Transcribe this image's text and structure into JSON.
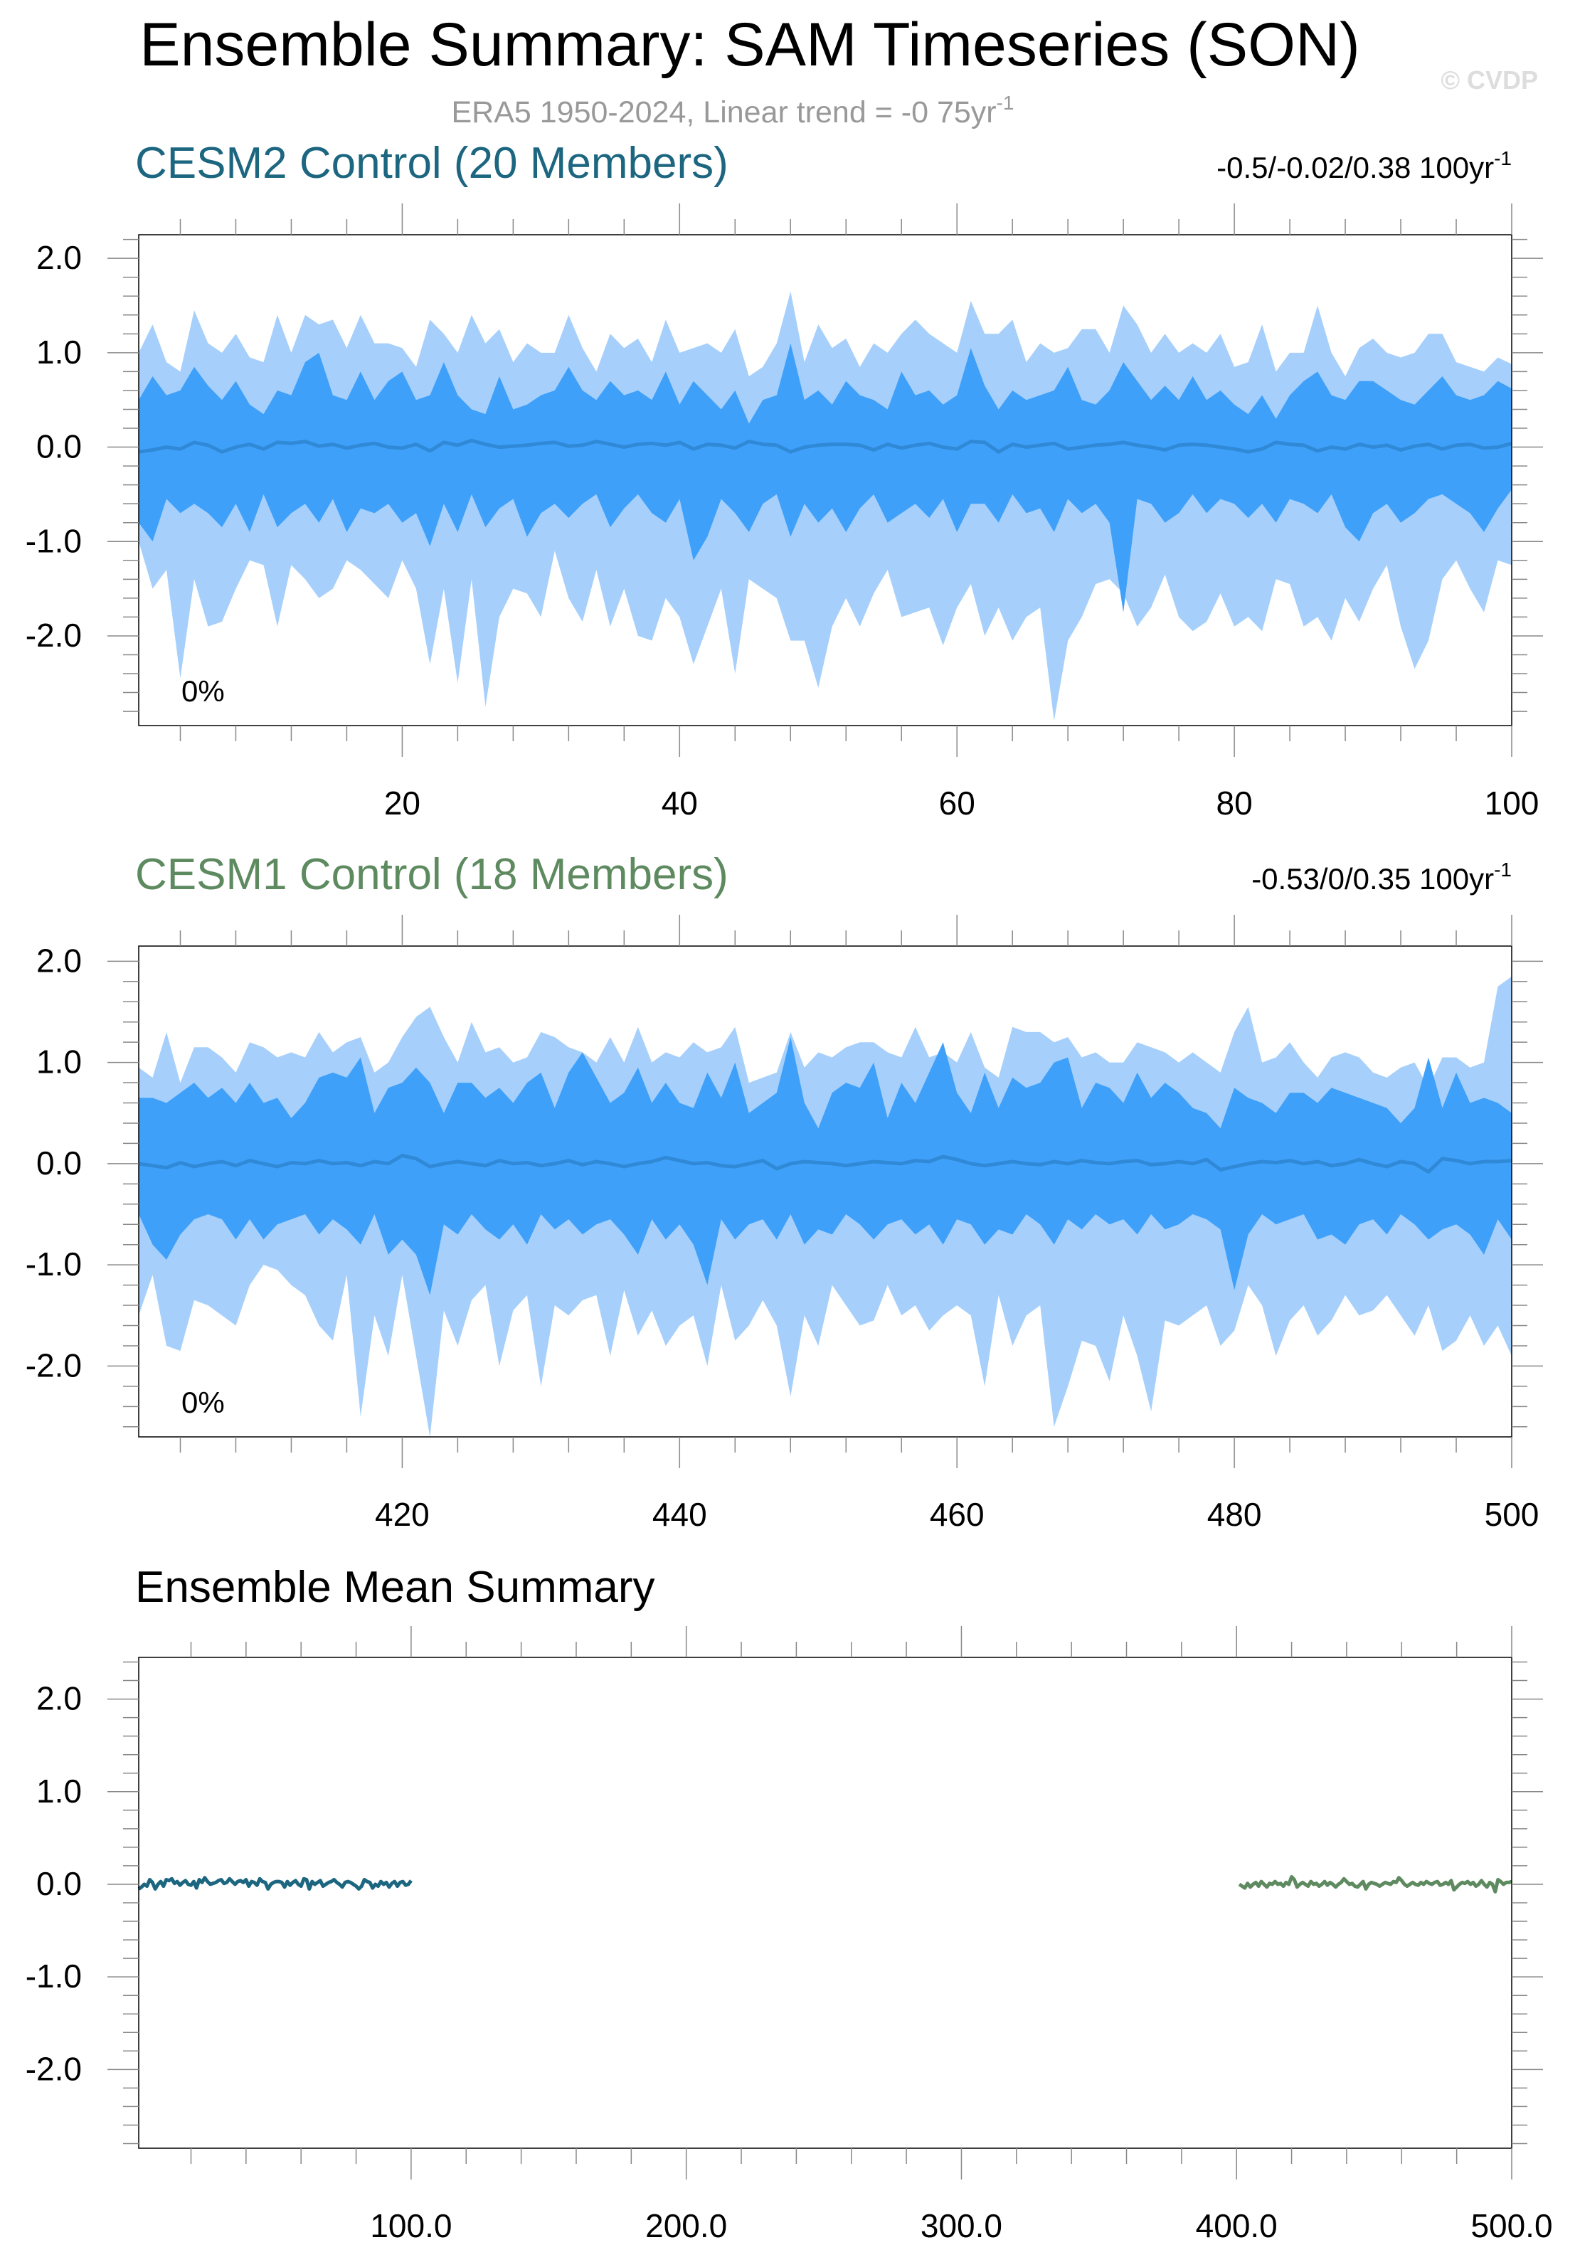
{
  "page": {
    "title": "Ensemble Summary: SAM Timeseries (SON)",
    "subtitle": "ERA5 1950-2024, Linear trend = -0 75yr",
    "subtitle_sup": "-1",
    "watermark": "© CVDP"
  },
  "colors": {
    "outer_band": "#a6d0fb",
    "inner_band": "#3fa0fa",
    "mean_line": "#2f89d6",
    "cesm2": "#1c6680",
    "cesm1": "#5e8a60",
    "axis": "#000000",
    "subtitle": "#999999",
    "watermark": "#dddddd"
  },
  "chart_data": [
    {
      "type": "area",
      "name": "cesm2-panel",
      "title": "CESM2 Control (20 Members)",
      "title_color": "#1c6680",
      "trend_label": "-0.5/-0.02/0.38 100yr",
      "trend_sup": "-1",
      "percent_label": "0%",
      "xlim": [
        1,
        100
      ],
      "ylim": [
        -2.95,
        2.25
      ],
      "xticks": [
        20,
        40,
        60,
        80,
        100
      ],
      "xtick_labels": [
        "20",
        "40",
        "60",
        "80",
        "100"
      ],
      "yticks": [
        2,
        1,
        0,
        -1,
        -2
      ],
      "ytick_labels": [
        "2.0",
        "1.0",
        "0.0",
        "-1.0",
        "-2.0"
      ],
      "x": [
        1,
        2,
        3,
        4,
        5,
        6,
        7,
        8,
        9,
        10,
        11,
        12,
        13,
        14,
        15,
        16,
        17,
        18,
        19,
        20,
        21,
        22,
        23,
        24,
        25,
        26,
        27,
        28,
        29,
        30,
        31,
        32,
        33,
        34,
        35,
        36,
        37,
        38,
        39,
        40,
        41,
        42,
        43,
        44,
        45,
        46,
        47,
        48,
        49,
        50,
        51,
        52,
        53,
        54,
        55,
        56,
        57,
        58,
        59,
        60,
        61,
        62,
        63,
        64,
        65,
        66,
        67,
        68,
        69,
        70,
        71,
        72,
        73,
        74,
        75,
        76,
        77,
        78,
        79,
        80,
        81,
        82,
        83,
        84,
        85,
        86,
        87,
        88,
        89,
        90,
        91,
        92,
        93,
        94,
        95,
        96,
        97,
        98,
        99,
        100
      ],
      "outer_upper": [
        1.0,
        1.3,
        0.9,
        0.8,
        1.45,
        1.1,
        1.0,
        1.2,
        0.95,
        0.9,
        1.4,
        1.0,
        1.4,
        1.3,
        1.35,
        1.05,
        1.4,
        1.1,
        1.1,
        1.05,
        0.85,
        1.35,
        1.2,
        1.0,
        1.4,
        1.1,
        1.25,
        0.9,
        1.1,
        1.0,
        1.0,
        1.4,
        1.05,
        0.8,
        1.2,
        1.05,
        1.15,
        0.9,
        1.35,
        1.0,
        1.05,
        1.1,
        1.0,
        1.25,
        0.75,
        0.85,
        1.1,
        1.65,
        0.9,
        1.3,
        1.05,
        1.15,
        0.85,
        1.1,
        1.0,
        1.2,
        1.35,
        1.2,
        1.1,
        1.0,
        1.55,
        1.2,
        1.2,
        1.35,
        0.9,
        1.1,
        1.0,
        1.05,
        1.25,
        1.25,
        1.0,
        1.5,
        1.3,
        1.0,
        1.2,
        1.0,
        1.1,
        1.0,
        1.2,
        0.85,
        0.9,
        1.3,
        0.8,
        1.0,
        1.0,
        1.5,
        1.0,
        0.75,
        1.05,
        1.15,
        1.0,
        0.95,
        1.0,
        1.2,
        1.2,
        0.9,
        0.85,
        0.8,
        0.95,
        0.88
      ],
      "inner_upper": [
        0.5,
        0.75,
        0.55,
        0.6,
        0.85,
        0.65,
        0.5,
        0.7,
        0.45,
        0.35,
        0.6,
        0.55,
        0.9,
        1.0,
        0.55,
        0.5,
        0.8,
        0.5,
        0.7,
        0.8,
        0.5,
        0.55,
        0.9,
        0.55,
        0.4,
        0.35,
        0.75,
        0.4,
        0.45,
        0.55,
        0.6,
        0.85,
        0.6,
        0.5,
        0.7,
        0.55,
        0.6,
        0.5,
        0.8,
        0.45,
        0.7,
        0.55,
        0.4,
        0.6,
        0.25,
        0.5,
        0.55,
        1.1,
        0.5,
        0.6,
        0.45,
        0.7,
        0.55,
        0.5,
        0.4,
        0.8,
        0.55,
        0.6,
        0.45,
        0.55,
        1.05,
        0.65,
        0.4,
        0.6,
        0.5,
        0.55,
        0.6,
        0.85,
        0.5,
        0.45,
        0.6,
        0.9,
        0.7,
        0.5,
        0.65,
        0.5,
        0.75,
        0.5,
        0.6,
        0.45,
        0.35,
        0.55,
        0.3,
        0.55,
        0.7,
        0.8,
        0.55,
        0.5,
        0.7,
        0.7,
        0.6,
        0.5,
        0.45,
        0.6,
        0.75,
        0.55,
        0.5,
        0.55,
        0.7,
        0.62
      ],
      "mean": [
        -0.05,
        -0.03,
        0.0,
        -0.02,
        0.05,
        0.02,
        -0.05,
        0.0,
        0.03,
        -0.02,
        0.05,
        0.04,
        0.06,
        0.01,
        0.03,
        -0.01,
        0.02,
        0.04,
        0.0,
        -0.01,
        0.03,
        -0.04,
        0.05,
        0.02,
        0.07,
        0.03,
        0.0,
        0.01,
        0.02,
        0.04,
        0.05,
        0.01,
        0.02,
        0.06,
        0.03,
        0.0,
        0.03,
        0.04,
        0.02,
        0.05,
        -0.02,
        0.03,
        0.02,
        -0.01,
        0.06,
        0.03,
        0.02,
        -0.05,
        0.0,
        0.02,
        0.03,
        0.03,
        0.02,
        -0.03,
        0.03,
        -0.01,
        0.02,
        0.04,
        0.0,
        -0.02,
        0.06,
        0.05,
        -0.05,
        0.03,
        0.0,
        0.02,
        0.04,
        -0.02,
        0.0,
        0.02,
        0.03,
        0.05,
        0.02,
        0.0,
        -0.03,
        0.02,
        0.03,
        0.02,
        0.0,
        -0.02,
        -0.05,
        -0.02,
        0.05,
        0.03,
        0.02,
        -0.04,
        0.0,
        -0.02,
        0.03,
        0.0,
        0.02,
        -0.03,
        0.01,
        0.03,
        -0.02,
        0.02,
        0.03,
        -0.01,
        0.0,
        0.04
      ],
      "inner_lower": [
        -0.8,
        -1.0,
        -0.55,
        -0.7,
        -0.6,
        -0.7,
        -0.85,
        -0.6,
        -0.9,
        -0.5,
        -0.85,
        -0.7,
        -0.6,
        -0.8,
        -0.55,
        -0.9,
        -0.65,
        -0.7,
        -0.6,
        -0.8,
        -0.7,
        -1.05,
        -0.6,
        -0.9,
        -0.5,
        -0.85,
        -0.65,
        -0.55,
        -0.95,
        -0.7,
        -0.6,
        -0.75,
        -0.6,
        -0.5,
        -0.85,
        -0.65,
        -0.5,
        -0.7,
        -0.8,
        -0.55,
        -1.2,
        -0.95,
        -0.55,
        -0.7,
        -0.9,
        -0.6,
        -0.5,
        -0.95,
        -0.6,
        -0.8,
        -0.65,
        -0.9,
        -0.65,
        -0.5,
        -0.8,
        -0.7,
        -0.6,
        -0.75,
        -0.55,
        -0.9,
        -0.6,
        -0.6,
        -0.8,
        -0.5,
        -0.7,
        -0.65,
        -0.9,
        -0.55,
        -0.7,
        -0.6,
        -0.8,
        -1.75,
        -0.55,
        -0.6,
        -0.8,
        -0.7,
        -0.5,
        -0.7,
        -0.55,
        -0.6,
        -0.75,
        -0.6,
        -0.8,
        -0.55,
        -0.6,
        -0.7,
        -0.5,
        -0.85,
        -1.0,
        -0.7,
        -0.6,
        -0.8,
        -0.7,
        -0.55,
        -0.5,
        -0.6,
        -0.7,
        -0.9,
        -0.65,
        -0.45
      ],
      "outer_lower": [
        -1.0,
        -1.5,
        -1.3,
        -2.45,
        -1.4,
        -1.9,
        -1.85,
        -1.5,
        -1.2,
        -1.25,
        -1.9,
        -1.25,
        -1.4,
        -1.6,
        -1.5,
        -1.2,
        -1.3,
        -1.45,
        -1.6,
        -1.2,
        -1.5,
        -2.3,
        -1.5,
        -2.5,
        -1.4,
        -2.75,
        -1.8,
        -1.5,
        -1.55,
        -1.8,
        -1.1,
        -1.6,
        -1.85,
        -1.3,
        -1.9,
        -1.5,
        -2.0,
        -2.05,
        -1.6,
        -1.8,
        -2.3,
        -1.9,
        -1.5,
        -2.4,
        -1.4,
        -1.5,
        -1.6,
        -2.05,
        -2.05,
        -2.55,
        -1.9,
        -1.6,
        -1.9,
        -1.55,
        -1.3,
        -1.8,
        -1.75,
        -1.7,
        -2.1,
        -1.7,
        -1.45,
        -2.0,
        -1.7,
        -2.05,
        -1.8,
        -1.7,
        -2.9,
        -2.05,
        -1.8,
        -1.45,
        -1.4,
        -1.55,
        -1.9,
        -1.7,
        -1.35,
        -1.8,
        -1.95,
        -1.85,
        -1.55,
        -1.9,
        -1.8,
        -1.95,
        -1.4,
        -1.45,
        -1.9,
        -1.8,
        -2.05,
        -1.6,
        -1.85,
        -1.5,
        -1.25,
        -1.9,
        -2.35,
        -2.05,
        -1.4,
        -1.2,
        -1.5,
        -1.75,
        -1.2,
        -1.25
      ]
    },
    {
      "type": "area",
      "name": "cesm1-panel",
      "title": "CESM1 Control (18 Members)",
      "title_color": "#5e8a60",
      "trend_label": "-0.53/0/0.35 100yr",
      "trend_sup": "-1",
      "percent_label": "0%",
      "xlim": [
        401,
        500
      ],
      "ylim": [
        -2.7,
        2.15
      ],
      "xticks": [
        420,
        440,
        460,
        480,
        500
      ],
      "xtick_labels": [
        "420",
        "440",
        "460",
        "480",
        "500"
      ],
      "yticks": [
        2,
        1,
        0,
        -1,
        -2
      ],
      "ytick_labels": [
        "2.0",
        "1.0",
        "0.0",
        "-1.0",
        "-2.0"
      ],
      "x": [
        401,
        402,
        403,
        404,
        405,
        406,
        407,
        408,
        409,
        410,
        411,
        412,
        413,
        414,
        415,
        416,
        417,
        418,
        419,
        420,
        421,
        422,
        423,
        424,
        425,
        426,
        427,
        428,
        429,
        430,
        431,
        432,
        433,
        434,
        435,
        436,
        437,
        438,
        439,
        440,
        441,
        442,
        443,
        444,
        445,
        446,
        447,
        448,
        449,
        450,
        451,
        452,
        453,
        454,
        455,
        456,
        457,
        458,
        459,
        460,
        461,
        462,
        463,
        464,
        465,
        466,
        467,
        468,
        469,
        470,
        471,
        472,
        473,
        474,
        475,
        476,
        477,
        478,
        479,
        480,
        481,
        482,
        483,
        484,
        485,
        486,
        487,
        488,
        489,
        490,
        491,
        492,
        493,
        494,
        495,
        496,
        497,
        498,
        499,
        500
      ],
      "outer_upper": [
        0.95,
        0.85,
        1.3,
        0.8,
        1.15,
        1.15,
        1.05,
        0.9,
        1.2,
        1.15,
        1.05,
        1.1,
        1.05,
        1.3,
        1.1,
        1.2,
        1.25,
        0.9,
        1.0,
        1.25,
        1.45,
        1.55,
        1.25,
        1.0,
        1.4,
        1.1,
        1.15,
        1.0,
        1.05,
        1.3,
        1.25,
        1.15,
        1.1,
        1.0,
        1.25,
        1.0,
        1.35,
        1.0,
        1.1,
        1.05,
        1.2,
        1.1,
        1.15,
        1.35,
        0.8,
        0.85,
        0.9,
        1.3,
        0.95,
        1.1,
        1.05,
        1.15,
        1.2,
        1.2,
        1.1,
        1.05,
        1.35,
        1.05,
        1.1,
        1.0,
        1.3,
        0.95,
        0.85,
        1.35,
        1.3,
        1.3,
        1.2,
        1.25,
        1.05,
        1.1,
        1.0,
        1.0,
        1.2,
        1.15,
        1.1,
        1.0,
        1.1,
        1.0,
        0.9,
        1.3,
        1.55,
        1.0,
        1.05,
        1.2,
        1.0,
        0.85,
        1.05,
        1.1,
        1.05,
        0.9,
        0.85,
        0.95,
        1.0,
        0.75,
        1.05,
        1.05,
        0.95,
        1.0,
        1.75,
        1.85
      ],
      "inner_upper": [
        0.65,
        0.65,
        0.6,
        0.7,
        0.8,
        0.65,
        0.75,
        0.6,
        0.8,
        0.6,
        0.65,
        0.45,
        0.6,
        0.85,
        0.9,
        0.85,
        1.05,
        0.5,
        0.75,
        0.8,
        0.95,
        0.8,
        0.5,
        0.8,
        0.8,
        0.65,
        0.75,
        0.6,
        0.8,
        0.9,
        0.55,
        0.9,
        1.1,
        0.85,
        0.6,
        0.7,
        0.95,
        0.6,
        0.8,
        0.6,
        0.55,
        0.9,
        0.65,
        1.0,
        0.5,
        0.6,
        0.7,
        1.25,
        0.6,
        0.35,
        0.7,
        0.8,
        0.75,
        1.0,
        0.45,
        0.8,
        0.6,
        0.9,
        1.2,
        0.7,
        0.5,
        0.9,
        0.55,
        0.85,
        0.75,
        0.8,
        1.0,
        1.05,
        0.55,
        0.8,
        0.75,
        0.6,
        0.9,
        0.65,
        0.8,
        0.7,
        0.55,
        0.5,
        0.35,
        0.75,
        0.65,
        0.6,
        0.5,
        0.7,
        0.7,
        0.6,
        0.75,
        0.7,
        0.65,
        0.6,
        0.55,
        0.4,
        0.55,
        1.05,
        0.55,
        0.9,
        0.6,
        0.65,
        0.6,
        0.5
      ],
      "mean": [
        0.0,
        -0.02,
        -0.04,
        0.01,
        -0.03,
        0.0,
        0.02,
        -0.02,
        0.03,
        0.0,
        -0.03,
        0.01,
        0.0,
        0.03,
        0.0,
        0.01,
        -0.02,
        0.02,
        0.0,
        0.08,
        0.05,
        -0.03,
        0.0,
        0.02,
        0.0,
        -0.02,
        0.03,
        0.0,
        0.01,
        -0.02,
        0.0,
        0.03,
        -0.01,
        0.02,
        0.0,
        -0.03,
        0.0,
        0.02,
        0.06,
        0.03,
        0.0,
        0.01,
        -0.02,
        -0.03,
        0.0,
        0.03,
        -0.05,
        0.0,
        0.02,
        0.01,
        0.0,
        -0.02,
        0.0,
        0.02,
        0.01,
        0.0,
        0.03,
        0.02,
        0.07,
        0.04,
        0.0,
        -0.02,
        0.0,
        0.02,
        0.0,
        -0.01,
        0.02,
        0.0,
        0.03,
        0.01,
        0.0,
        0.02,
        0.03,
        -0.01,
        0.0,
        0.02,
        0.0,
        0.04,
        -0.06,
        -0.03,
        0.0,
        0.02,
        0.01,
        0.03,
        0.0,
        0.02,
        -0.02,
        0.0,
        0.04,
        0.0,
        -0.03,
        0.02,
        0.0,
        -0.08,
        0.05,
        0.03,
        0.0,
        0.02,
        0.02,
        0.03
      ],
      "inner_lower": [
        -0.5,
        -0.8,
        -0.95,
        -0.7,
        -0.55,
        -0.5,
        -0.55,
        -0.75,
        -0.55,
        -0.75,
        -0.6,
        -0.55,
        -0.5,
        -0.7,
        -0.55,
        -0.65,
        -0.8,
        -0.5,
        -0.9,
        -0.75,
        -0.9,
        -1.3,
        -0.6,
        -0.7,
        -0.5,
        -0.65,
        -0.75,
        -0.6,
        -0.8,
        -0.5,
        -0.65,
        -0.55,
        -0.7,
        -0.6,
        -0.55,
        -0.7,
        -0.9,
        -0.55,
        -0.75,
        -0.6,
        -0.8,
        -1.2,
        -0.55,
        -0.75,
        -0.6,
        -0.55,
        -0.75,
        -0.5,
        -0.8,
        -0.65,
        -0.7,
        -0.5,
        -0.6,
        -0.75,
        -0.6,
        -0.55,
        -0.7,
        -0.6,
        -0.8,
        -0.55,
        -0.6,
        -0.8,
        -0.65,
        -0.7,
        -0.5,
        -0.6,
        -0.8,
        -0.55,
        -0.65,
        -0.5,
        -0.6,
        -0.55,
        -0.7,
        -0.5,
        -0.65,
        -0.6,
        -0.5,
        -0.55,
        -0.65,
        -1.25,
        -0.7,
        -0.5,
        -0.6,
        -0.55,
        -0.5,
        -0.75,
        -0.7,
        -0.8,
        -0.6,
        -0.55,
        -0.7,
        -0.5,
        -0.6,
        -0.75,
        -0.65,
        -0.6,
        -0.7,
        -0.9,
        -0.55,
        -0.75
      ],
      "outer_lower": [
        -1.5,
        -1.1,
        -1.8,
        -1.85,
        -1.35,
        -1.4,
        -1.5,
        -1.6,
        -1.2,
        -1.0,
        -1.05,
        -1.2,
        -1.3,
        -1.6,
        -1.75,
        -1.1,
        -2.5,
        -1.5,
        -1.9,
        -1.1,
        -1.9,
        -2.7,
        -1.45,
        -1.8,
        -1.35,
        -1.2,
        -2.0,
        -1.45,
        -1.3,
        -2.2,
        -1.4,
        -1.5,
        -1.35,
        -1.3,
        -1.9,
        -1.25,
        -1.7,
        -1.45,
        -1.8,
        -1.6,
        -1.5,
        -2.0,
        -1.2,
        -1.75,
        -1.6,
        -1.35,
        -1.6,
        -2.3,
        -1.5,
        -1.8,
        -1.2,
        -1.4,
        -1.6,
        -1.55,
        -1.2,
        -1.5,
        -1.4,
        -1.65,
        -1.5,
        -1.4,
        -1.5,
        -2.2,
        -1.3,
        -1.8,
        -1.5,
        -1.4,
        -2.6,
        -2.2,
        -1.75,
        -1.8,
        -2.15,
        -1.5,
        -1.9,
        -2.45,
        -1.55,
        -1.6,
        -1.5,
        -1.4,
        -1.8,
        -1.65,
        -1.2,
        -1.4,
        -1.9,
        -1.55,
        -1.4,
        -1.7,
        -1.55,
        -1.3,
        -1.5,
        -1.45,
        -1.3,
        -1.5,
        -1.7,
        -1.4,
        -1.85,
        -1.75,
        -1.5,
        -1.8,
        -1.6,
        -1.9
      ]
    },
    {
      "type": "line",
      "name": "ensemble-mean-panel",
      "title": "Ensemble Mean Summary",
      "title_color": "#000000",
      "xlim": [
        1,
        500
      ],
      "ylim": [
        -2.85,
        2.45
      ],
      "xticks": [
        100,
        200,
        300,
        400,
        500
      ],
      "xtick_labels": [
        "100.0",
        "200.0",
        "300.0",
        "400.0",
        "500.0"
      ],
      "yticks": [
        2,
        1,
        0,
        -1,
        -2
      ],
      "ytick_labels": [
        "2.0",
        "1.0",
        "0.0",
        "-1.0",
        "-2.0"
      ],
      "series": [
        {
          "ref": 0,
          "x_from": 1,
          "color": "#1c6680"
        },
        {
          "ref": 1,
          "x_from": 401,
          "color": "#5e8a60"
        }
      ]
    }
  ]
}
